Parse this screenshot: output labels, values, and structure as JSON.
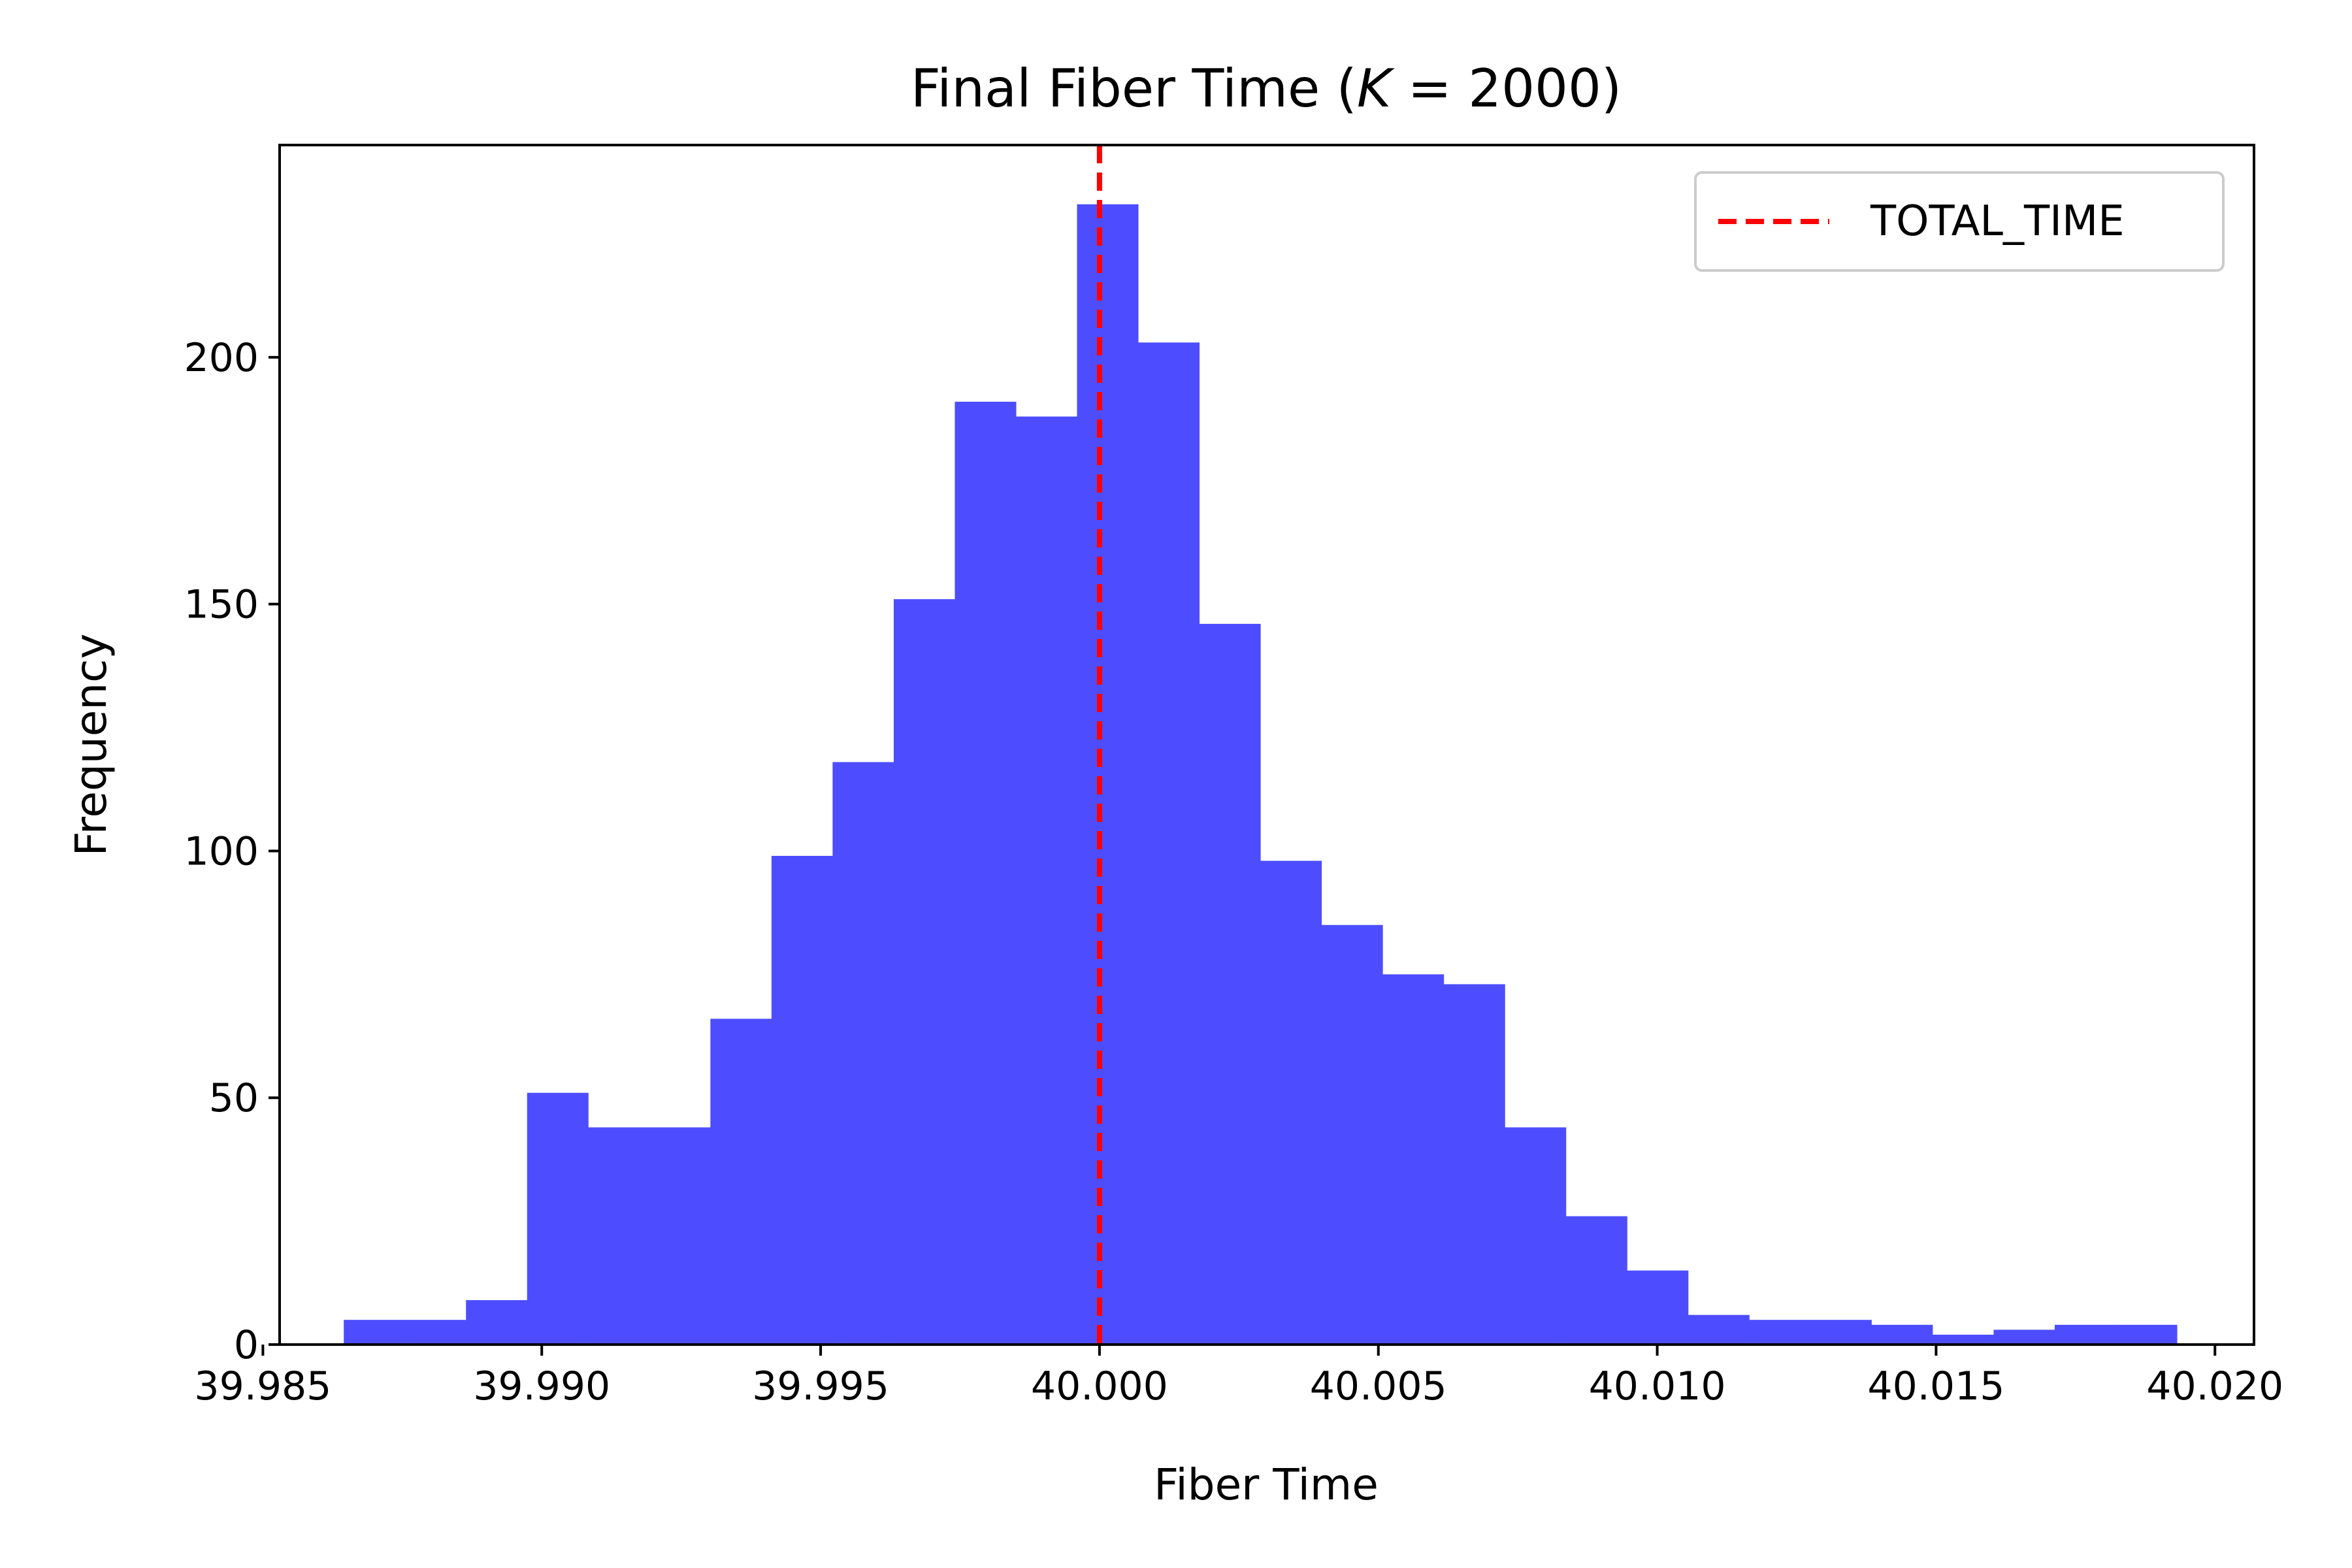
{
  "chart_data": {
    "type": "bar",
    "title": "Final Fiber Time (",
    "title_k": "K",
    "title_tail": " = 2000)",
    "xlabel": "Fiber Time",
    "ylabel": "Frequency",
    "xlim": [
      39.9853,
      40.0207
    ],
    "ylim": [
      0,
      243
    ],
    "xticks": [
      39.985,
      39.99,
      39.995,
      40.0,
      40.005,
      40.01,
      40.015,
      40.02
    ],
    "xtick_labels": [
      "39.985",
      "39.990",
      "39.995",
      "40.000",
      "40.005",
      "40.010",
      "40.015",
      "40.020"
    ],
    "yticks": [
      0,
      50,
      100,
      150,
      200
    ],
    "ytick_labels": [
      "0",
      "50",
      "100",
      "150",
      "200"
    ],
    "bin_start": 39.98645,
    "bin_width": 0.0010956,
    "values": [
      5,
      5,
      9,
      51,
      44,
      44,
      66,
      99,
      118,
      151,
      191,
      188,
      231,
      203,
      146,
      98,
      85,
      75,
      73,
      44,
      26,
      15,
      6,
      5,
      5,
      4,
      2,
      3,
      4,
      4
    ],
    "bar_color": "#4d4dff",
    "reference_line": {
      "x": 40.0,
      "label": "TOTAL_TIME",
      "color": "#ff0000",
      "style": "dashed"
    },
    "legend_position": "top-right",
    "grid": false
  }
}
